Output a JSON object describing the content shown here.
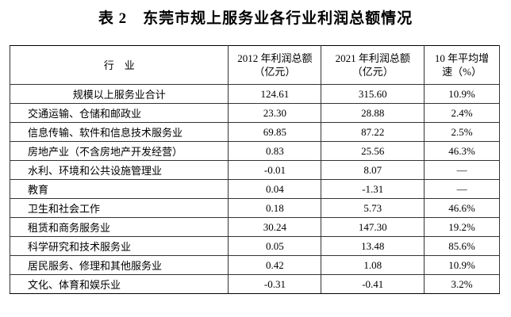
{
  "title": "表 2　东莞市规上服务业各行业利润总额情况",
  "table": {
    "headers": [
      [
        "行　业"
      ],
      [
        "2012 年利润总额",
        "（亿元）"
      ],
      [
        "2021 年利润总额",
        "（亿元）"
      ],
      [
        "10 年平均增",
        "速（%）"
      ]
    ],
    "rows": [
      [
        "规模以上服务业合计",
        "124.61",
        "315.60",
        "10.9%"
      ],
      [
        "交通运输、仓储和邮政业",
        "23.30",
        "28.88",
        "2.4%"
      ],
      [
        "信息传输、软件和信息技术服务业",
        "69.85",
        "87.22",
        "2.5%"
      ],
      [
        "房地产业（不含房地产开发经营）",
        "0.83",
        "25.56",
        "46.3%"
      ],
      [
        "水利、环境和公共设施管理业",
        "-0.01",
        "8.07",
        "—"
      ],
      [
        "教育",
        "0.04",
        "-1.31",
        "—"
      ],
      [
        "卫生和社会工作",
        "0.18",
        "5.73",
        "46.6%"
      ],
      [
        "租赁和商务服务业",
        "30.24",
        "147.30",
        "19.2%"
      ],
      [
        "科学研究和技术服务业",
        "0.05",
        "13.48",
        "85.6%"
      ],
      [
        "居民服务、修理和其他服务业",
        "0.42",
        "1.08",
        "10.9%"
      ],
      [
        "文化、体育和娱乐业",
        "-0.31",
        "-0.41",
        "3.2%"
      ]
    ]
  }
}
